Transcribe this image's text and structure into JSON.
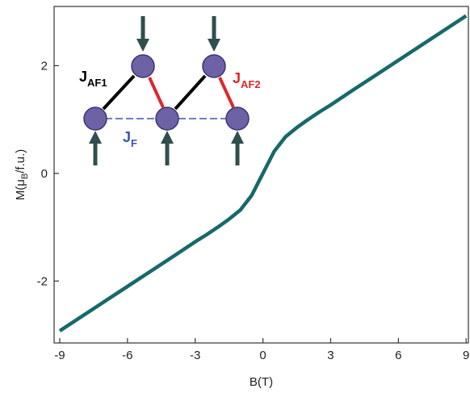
{
  "chart_data": {
    "type": "line",
    "xlabel": "B(T)",
    "ylabel": [
      "M(μ",
      "B",
      "/f.u.)"
    ],
    "x": [
      -9,
      -8,
      -7,
      -6,
      -5,
      -4,
      -3,
      -2.5,
      -2,
      -1.5,
      -1,
      -0.5,
      0,
      0.5,
      1,
      1.5,
      2,
      2.5,
      3,
      4,
      5,
      6,
      7,
      8,
      9
    ],
    "values": [
      -2.925,
      -2.65,
      -2.375,
      -2.1,
      -1.825,
      -1.55,
      -1.27,
      -1.14,
      -1.0,
      -0.85,
      -0.68,
      -0.41,
      0,
      0.41,
      0.68,
      0.85,
      1.0,
      1.14,
      1.27,
      1.55,
      1.825,
      2.1,
      2.375,
      2.65,
      2.925
    ],
    "color": "#17696a",
    "xlim": [
      -9.25,
      9.1
    ],
    "ylim": [
      -3.15,
      3.1
    ],
    "xticks": [
      -9,
      -6,
      -3,
      0,
      3,
      6,
      9
    ],
    "yticks": [
      -2,
      0,
      2
    ],
    "annotations": [
      {
        "text": "J",
        "sub": "AF1",
        "color": "#000000"
      },
      {
        "text": "J",
        "sub": "AF2",
        "color": "#e0262b"
      },
      {
        "text": "J",
        "sub": "F",
        "color": "#3a55b0"
      }
    ]
  }
}
